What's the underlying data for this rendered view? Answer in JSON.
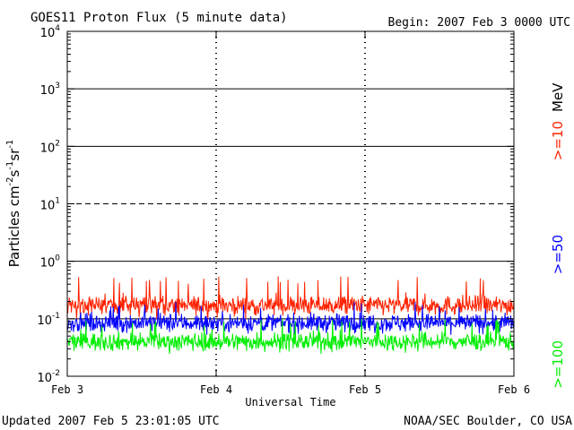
{
  "header": {
    "title": "GOES11 Proton Flux (5 minute data)",
    "begin": "Begin: 2007 Feb 3 0000 UTC"
  },
  "footer": {
    "updated": "Updated 2007 Feb  5 23:01:05 UTC",
    "credit": "NOAA/SEC Boulder, CO USA"
  },
  "colors": {
    "ge10": "#ff2200",
    "ge50": "#0000ff",
    "ge100": "#00ee00",
    "grid": "#000000"
  },
  "chart_data": {
    "type": "line",
    "title": "GOES11 Proton Flux (5 minute data)",
    "xlabel": "Universal Time",
    "ylabel": "Particles cm-2s-1sr-1",
    "ylabel_parts": {
      "base": "Particles cm",
      "e1": "-2",
      "m1": "s",
      "e2": "-1",
      "m2": "sr",
      "e3": "-1"
    },
    "yscale": "log",
    "ylim": [
      0.01,
      10000
    ],
    "ytick_labels": [
      {
        "base": "10",
        "exp": "-2"
      },
      {
        "base": "10",
        "exp": "-1"
      },
      {
        "base": "10",
        "exp": "0"
      },
      {
        "base": "10",
        "exp": "1"
      },
      {
        "base": "10",
        "exp": "2"
      },
      {
        "base": "10",
        "exp": "3"
      },
      {
        "base": "10",
        "exp": "4"
      }
    ],
    "ytick_values": [
      0.01,
      0.1,
      1,
      10,
      100,
      1000,
      10000
    ],
    "x_tick_labels": [
      "Feb 3",
      "Feb 4",
      "Feb 5",
      "Feb 6"
    ],
    "xlim_days": [
      0,
      3
    ],
    "interval_minutes": 5,
    "energy_unit": "MeV",
    "series": [
      {
        "name": ">=10",
        "color_key": "ge10",
        "median": 0.17,
        "range": [
          0.1,
          0.55
        ]
      },
      {
        "name": ">=50",
        "color_key": "ge50",
        "median": 0.085,
        "range": [
          0.04,
          0.2
        ]
      },
      {
        "name": ">=100",
        "color_key": "ge100",
        "median": 0.04,
        "range": [
          0.02,
          0.1
        ]
      }
    ],
    "grid": true
  }
}
